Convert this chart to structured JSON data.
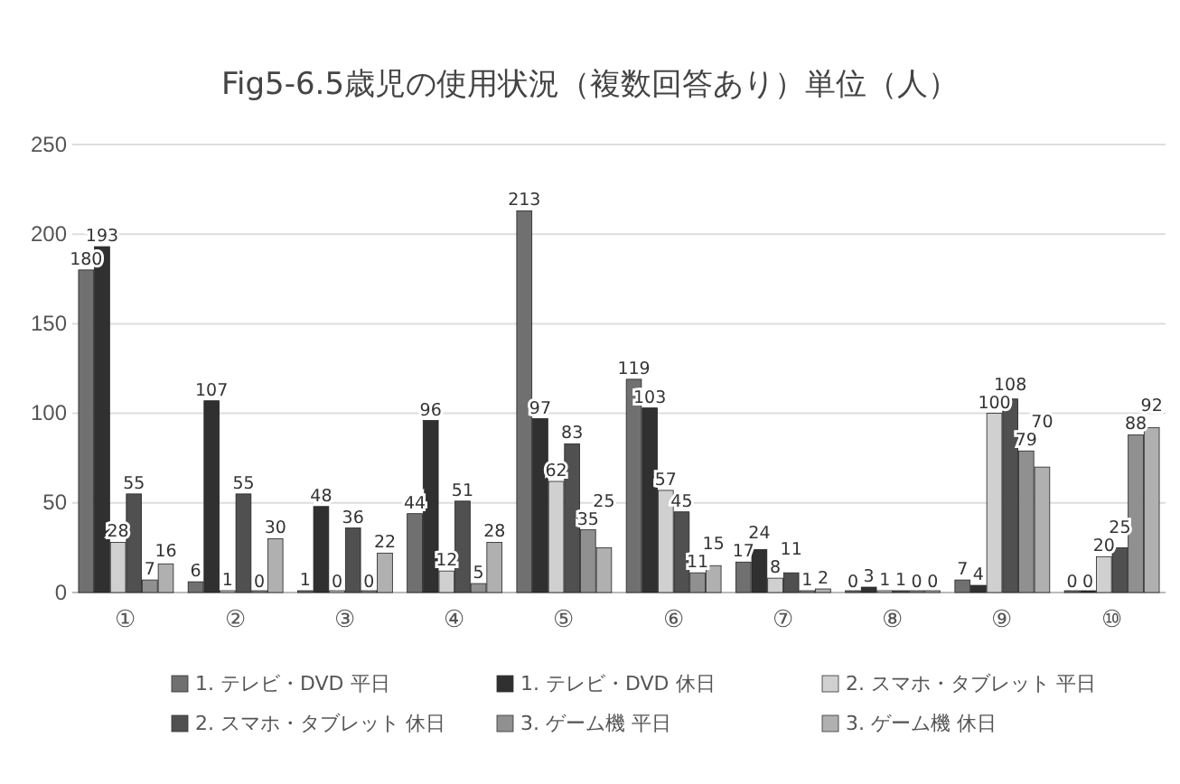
{
  "chart_data": {
    "type": "bar",
    "title": "Fig5-6.5歳児の使用状況（複数回答あり）単位（人）",
    "categories": [
      "①",
      "②",
      "③",
      "④",
      "⑤",
      "⑥",
      "⑦",
      "⑧",
      "⑨",
      "⑩"
    ],
    "series": [
      {
        "name": "1. テレビ・DVD 平日",
        "color": "#707070",
        "values": [
          180,
          6,
          1,
          44,
          213,
          119,
          17,
          0,
          7,
          0
        ]
      },
      {
        "name": "1. テレビ・DVD 休日",
        "color": "#303030",
        "values": [
          193,
          107,
          48,
          96,
          97,
          103,
          24,
          3,
          4,
          0
        ]
      },
      {
        "name": "2. スマホ・タブレット 平日",
        "color": "#d0d0d0",
        "values": [
          28,
          1,
          0,
          12,
          62,
          57,
          8,
          1,
          100,
          20
        ]
      },
      {
        "name": "2. スマホ・タブレット 休日",
        "color": "#505050",
        "values": [
          55,
          55,
          36,
          51,
          83,
          45,
          11,
          1,
          108,
          25
        ]
      },
      {
        "name": "3. ゲーム機 平日",
        "color": "#909090",
        "values": [
          7,
          0,
          0,
          5,
          35,
          11,
          1,
          0,
          79,
          88
        ]
      },
      {
        "name": "3. ゲーム機 休日",
        "color": "#b0b0b0",
        "values": [
          16,
          30,
          22,
          28,
          25,
          15,
          2,
          0,
          70,
          92
        ]
      }
    ],
    "ylim": [
      0,
      250
    ],
    "yticks": [
      0,
      50,
      100,
      150,
      200,
      250
    ],
    "grid": "y",
    "legend": "bottom",
    "data_labels": true
  }
}
